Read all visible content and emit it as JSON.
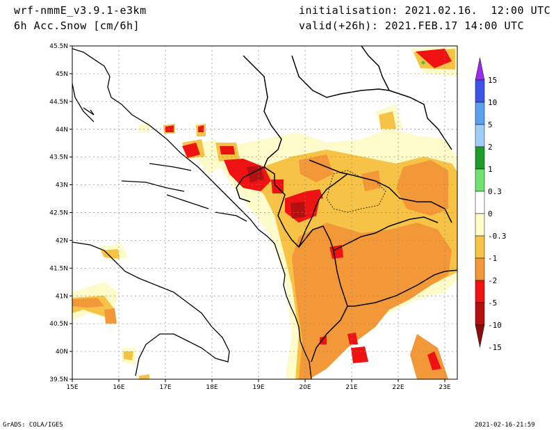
{
  "header": {
    "model": "wrf-nmmE_v3.9.1-e3km",
    "field": "6h Acc.Snow [cm/6h]",
    "init": "initialisation: 2021.02.16.  12:00 UTC",
    "valid": "valid(+26h): 2021.FEB.17 14:00 UTC"
  },
  "footer": {
    "credit": "GrADS: COLA/IGES",
    "timestamp": "2021-02-16-21:59"
  },
  "map": {
    "lat_ticks": [
      "45.5N",
      "45N",
      "44.5N",
      "44N",
      "43.5N",
      "43N",
      "42.5N",
      "42N",
      "41.5N",
      "41N",
      "40.5N",
      "40N",
      "39.5N"
    ],
    "lon_ticks": [
      "15E",
      "16E",
      "17E",
      "18E",
      "19E",
      "20E",
      "21E",
      "22E",
      "23E"
    ]
  },
  "colorbar": {
    "labels": [
      "15",
      "10",
      "5",
      "2",
      "1",
      "0.3",
      "0",
      "-0.3",
      "-1",
      "-2",
      "-5",
      "-10",
      "-15"
    ],
    "colors": [
      "#9a2cf0",
      "#3c55e6",
      "#5aa0ee",
      "#9fcdf4",
      "#1f9a2a",
      "#6fe36f",
      "#ffffff",
      "#fefbcb",
      "#f6c346",
      "#f29838",
      "#ee1212",
      "#b31010",
      "#8a0c0c"
    ]
  },
  "colors": {
    "pale": "#fefbcb",
    "light_orange": "#f6c346",
    "orange": "#f29838",
    "red": "#ee1212",
    "dark_red": "#b31010"
  }
}
